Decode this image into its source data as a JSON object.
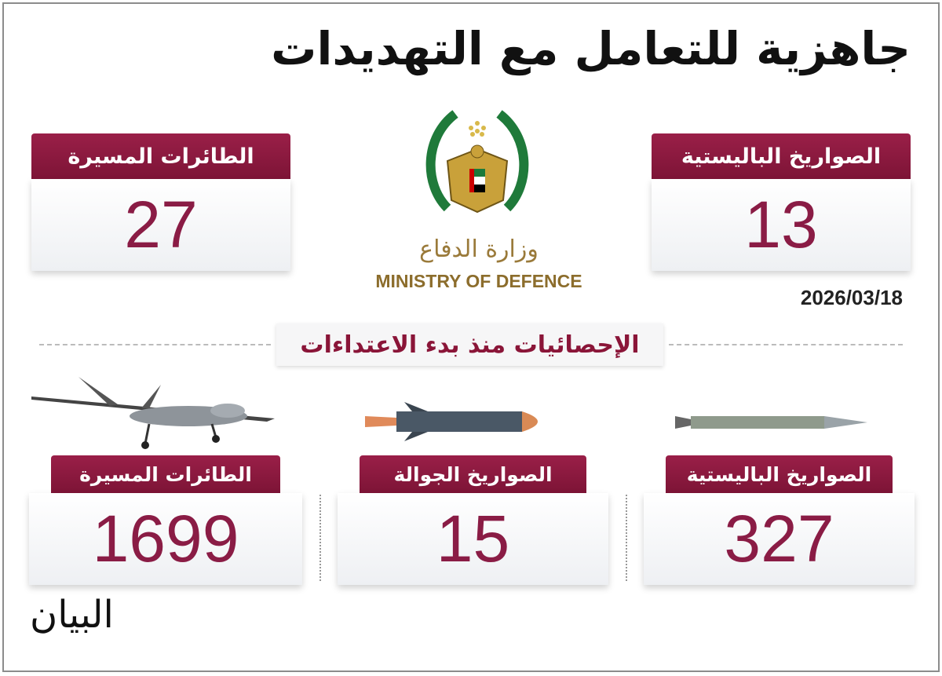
{
  "title": "جاهزية للتعامل مع التهديدات",
  "daily": {
    "drones": {
      "label": "الطائرات المسيرة",
      "value": "27"
    },
    "ballistic": {
      "label": "الصواريخ الباليستية",
      "value": "13"
    }
  },
  "ministry": {
    "name_ar": "وزارة الدفاع",
    "name_en": "MINISTRY OF DEFENCE"
  },
  "date": "2026/03/18",
  "section_title": "الإحصائيات منذ بدء الاعتداءات",
  "totals": {
    "drones": {
      "label": "الطائرات المسيرة",
      "value": "1699"
    },
    "cruise": {
      "label": "الصواريخ الجوالة",
      "value": "15"
    },
    "ballistic": {
      "label": "الصواريخ الباليستية",
      "value": "327"
    }
  },
  "publisher_logo": "البيان",
  "colors": {
    "accent": "#8a1538",
    "number": "#8a1c45",
    "gold": "#8c6d2c"
  }
}
